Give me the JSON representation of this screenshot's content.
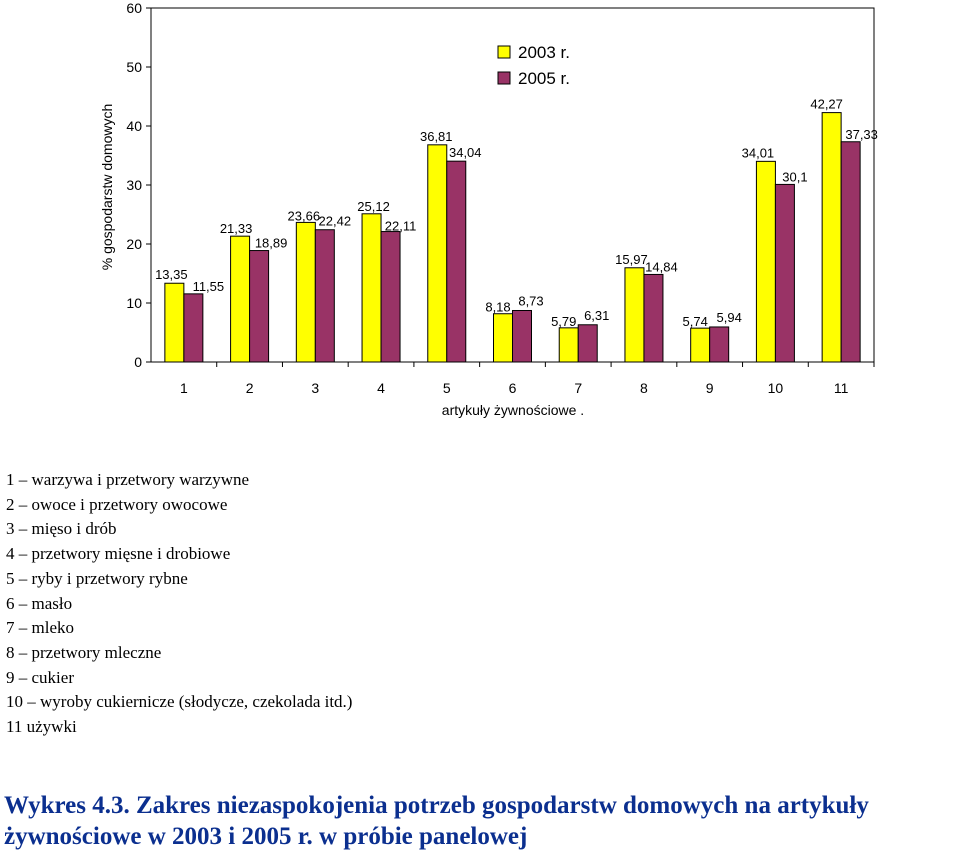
{
  "chart_data": {
    "type": "bar",
    "categories": [
      "1",
      "2",
      "3",
      "4",
      "5",
      "6",
      "7",
      "8",
      "9",
      "10",
      "11"
    ],
    "series": [
      {
        "name": "2003 r.",
        "color": "#ffff00",
        "values": [
          13.35,
          21.33,
          23.66,
          25.12,
          36.81,
          8.18,
          5.79,
          15.97,
          5.74,
          34.01,
          42.27
        ],
        "labels": [
          "13,35",
          "21,33",
          "23,66",
          "25,12",
          "36,81",
          "8,18",
          "5,79",
          "15,97",
          "5,74",
          "34,01",
          "42,27"
        ]
      },
      {
        "name": "2005 r.",
        "color": "#993366",
        "values": [
          11.55,
          18.89,
          22.42,
          22.11,
          34.04,
          8.73,
          6.31,
          14.84,
          5.94,
          30.1,
          37.33
        ],
        "labels": [
          "11,55",
          "18,89",
          "22,42",
          "22,11",
          "34,04",
          "8,73",
          "6,31",
          "14,84",
          "5,94",
          "30,1",
          "37,33"
        ]
      }
    ],
    "xlabel": "artykuły żywnościowe   .",
    "ylabel": "% gospodarstw domowych",
    "ylim": [
      0,
      60
    ],
    "yticks": [
      "0",
      "10",
      "20",
      "30",
      "40",
      "50",
      "60"
    ],
    "legend_position": "top-center",
    "grid": false
  },
  "legend_items": [
    "1 – warzywa i przetwory warzywne",
    "2 – owoce i przetwory owocowe",
    "3 – mięso i drób",
    "4 – przetwory mięsne i drobiowe",
    "5 – ryby i przetwory rybne",
    "6 – masło",
    "7 – mleko",
    "8 – przetwory mleczne",
    "9 – cukier",
    "10 – wyroby cukiernicze (słodycze, czekolada itd.)",
    "11 używki"
  ],
  "caption": "Wykres 4.3. Zakres niezaspokojenia potrzeb gospodarstw domowych na artykuły żywnościowe w 2003 i 2005 r. w próbie panelowej",
  "colors": {
    "caption": "#0b2f8f",
    "axis": "#000000"
  }
}
